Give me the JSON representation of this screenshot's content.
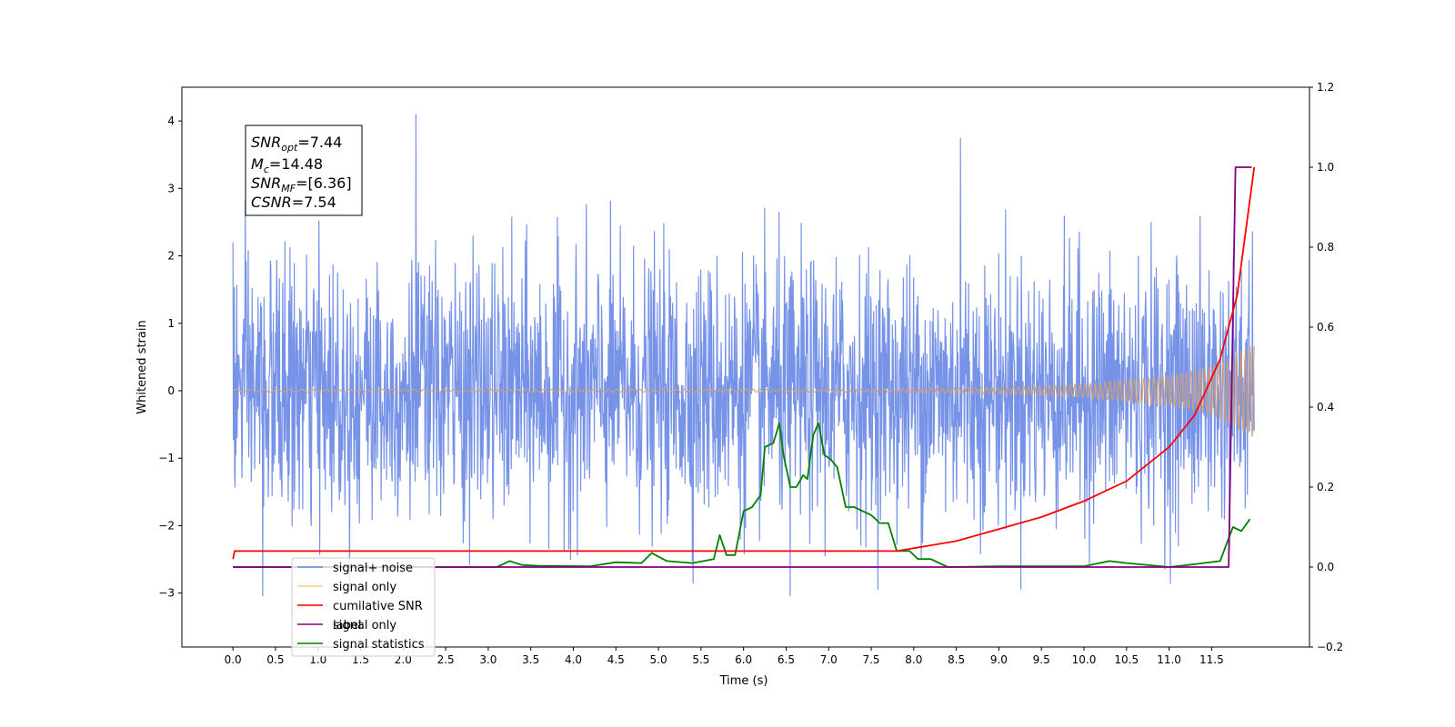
{
  "chart_data": {
    "type": "line",
    "xlabel": "Time (s)",
    "ylabel": "Whitened strain",
    "xlim": [
      -0.6,
      12.65
    ],
    "ylim_left": [
      -3.8,
      4.5
    ],
    "ylim_right": [
      -0.2,
      1.2
    ],
    "x_ticks": [
      "0.0",
      "0.5",
      "1.0",
      "1.5",
      "2.0",
      "2.5",
      "3.0",
      "3.5",
      "4.0",
      "4.5",
      "5.0",
      "5.5",
      "6.0",
      "6.5",
      "7.0",
      "7.5",
      "8.0",
      "8.5",
      "9.0",
      "9.5",
      "10.0",
      "10.5",
      "11.0",
      "11.5"
    ],
    "y_ticks_left": [
      "−3",
      "−2",
      "−1",
      "0",
      "1",
      "2",
      "3",
      "4"
    ],
    "y_ticks_right": [
      "−0.2",
      "0.0",
      "0.2",
      "0.4",
      "0.6",
      "0.8",
      "1.0",
      "1.2"
    ],
    "annotation": {
      "snr_opt": {
        "base": "SNR",
        "sub": "opt",
        "value": "=7.44"
      },
      "mc": {
        "base": "M",
        "sub": "c",
        "value": "=14.48"
      },
      "snr_mf": {
        "base": "SNR",
        "sub": "MF",
        "value": "=[6.36]"
      },
      "csnr": {
        "base": "CSNR",
        "value": "=7.54"
      }
    },
    "legend": {
      "placement": "lower left",
      "entries": [
        {
          "label": "signal+ noise",
          "color": "#6b8ae6"
        },
        {
          "label": "signal only",
          "color": "#ffb84d"
        },
        {
          "label": "cumilative SNR",
          "color": "#ff0000"
        },
        {
          "label": "label",
          "color": "#800080"
        },
        {
          "label": "signal statistics",
          "color": "#008000"
        }
      ],
      "occluded_text": "signal only"
    },
    "series": [
      {
        "name": "signal+ noise",
        "axis": "left",
        "color": "#6b8ae6",
        "description": "dense whitened noise, roughly within [-3.1, 4.1] between t=0 and t=12",
        "x_range": [
          0,
          12
        ],
        "peak_samples": [
          {
            "x": 2.15,
            "y": 4.1
          },
          {
            "x": 8.55,
            "y": 3.75
          },
          {
            "x": 0.0,
            "y": 2.2
          },
          {
            "x": 6.55,
            "y": -3.05
          },
          {
            "x": 0.35,
            "y": -3.05
          }
        ]
      },
      {
        "name": "signal only",
        "axis": "left",
        "color": "#d4a070",
        "description": "chirp; amplitude grows toward the end",
        "x_range": [
          0,
          12
        ],
        "amplitude_points": [
          [
            0,
            0.02
          ],
          [
            7.5,
            0.02
          ],
          [
            9,
            0.05
          ],
          [
            10,
            0.1
          ],
          [
            11,
            0.22
          ],
          [
            11.5,
            0.36
          ],
          [
            12,
            0.7
          ]
        ]
      },
      {
        "name": "cumilative SNR",
        "axis": "right",
        "color": "#ff0000",
        "x": [
          0,
          0.02,
          7.8,
          8.5,
          9.0,
          9.5,
          10.0,
          10.5,
          11.0,
          11.3,
          11.6,
          11.8,
          12.0
        ],
        "y": [
          0.02,
          0.04,
          0.04,
          0.065,
          0.095,
          0.125,
          0.165,
          0.215,
          0.3,
          0.38,
          0.52,
          0.68,
          1.0
        ]
      },
      {
        "name": "label",
        "axis": "right",
        "color": "#800080",
        "x": [
          0,
          11.7,
          11.78,
          11.97
        ],
        "y": [
          0.0,
          0.0,
          1.0,
          1.0
        ]
      },
      {
        "name": "signal statistics",
        "axis": "right",
        "color": "#008000",
        "x": [
          0,
          3.1,
          3.25,
          3.4,
          3.6,
          4.2,
          4.5,
          4.8,
          4.92,
          5.1,
          5.4,
          5.65,
          5.72,
          5.8,
          5.9,
          6.0,
          6.1,
          6.2,
          6.25,
          6.35,
          6.42,
          6.47,
          6.55,
          6.62,
          6.7,
          6.75,
          6.82,
          6.88,
          6.95,
          7.02,
          7.1,
          7.2,
          7.3,
          7.4,
          7.5,
          7.6,
          7.7,
          7.8,
          7.95,
          8.05,
          8.2,
          8.4,
          9.0,
          10.0,
          10.3,
          10.5,
          11.0,
          11.3,
          11.6,
          11.75,
          11.85,
          11.95
        ],
        "y": [
          0.0,
          0.0,
          0.015,
          0.005,
          0.003,
          0.002,
          0.012,
          0.01,
          0.035,
          0.015,
          0.01,
          0.02,
          0.08,
          0.03,
          0.03,
          0.14,
          0.15,
          0.18,
          0.3,
          0.31,
          0.36,
          0.28,
          0.2,
          0.2,
          0.23,
          0.22,
          0.33,
          0.36,
          0.28,
          0.27,
          0.25,
          0.15,
          0.15,
          0.14,
          0.13,
          0.11,
          0.11,
          0.04,
          0.04,
          0.02,
          0.02,
          0.0,
          0.002,
          0.002,
          0.015,
          0.01,
          0.0,
          0.007,
          0.015,
          0.1,
          0.09,
          0.12
        ]
      }
    ]
  }
}
